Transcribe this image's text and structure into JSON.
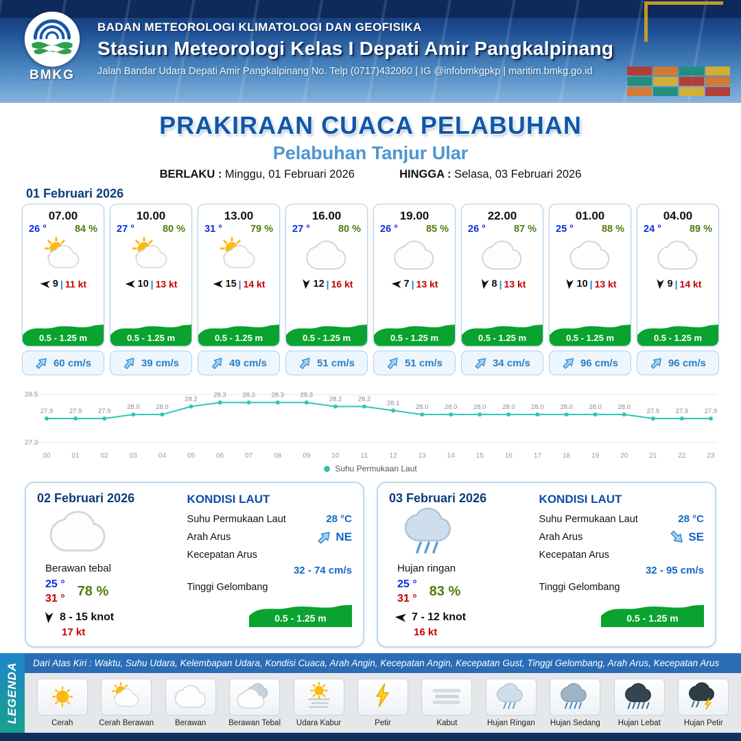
{
  "header": {
    "org": "BADAN METEOROLOGI KLIMATOLOGI DAN GEOFISIKA",
    "station": "Stasiun Meteorologi Kelas I Depati Amir Pangkalpinang",
    "address": "Jalan Bandar Udara Depati Amir Pangkalpinang No. Telp (0717)432060 | IG @infobmkgpkp | maritim.bmkg.go.id",
    "logo_label": "BMKG"
  },
  "title": {
    "main": "PRAKIRAAN CUACA PELABUHAN",
    "sub": "Pelabuhan Tanjur Ular",
    "berlaku_label": "BERLAKU :",
    "berlaku_value": "Minggu, 01 Februari 2026",
    "hingga_label": "HINGGA :",
    "hingga_value": "Selasa, 03 Februari 2026"
  },
  "forecast_date": "01 Februari 2026",
  "hourly_cards": [
    {
      "time": "07.00",
      "temp": "26 °",
      "humidity": "84 %",
      "icon": "cerah-berawan",
      "wind_deg": 185,
      "wind": "9",
      "gust": "11 kt",
      "wave": "0.5 - 1.25 m",
      "cur_deg": -45,
      "current": "60 cm/s"
    },
    {
      "time": "10.00",
      "temp": "27 °",
      "humidity": "80 %",
      "icon": "cerah-berawan",
      "wind_deg": 180,
      "wind": "10",
      "gust": "13 kt",
      "wave": "0.5 - 1.25 m",
      "cur_deg": -50,
      "current": "39 cm/s"
    },
    {
      "time": "13.00",
      "temp": "31 °",
      "humidity": "79 %",
      "icon": "cerah-berawan",
      "wind_deg": 180,
      "wind": "15",
      "gust": "14 kt",
      "wave": "0.5 - 1.25 m",
      "cur_deg": -50,
      "current": "49 cm/s"
    },
    {
      "time": "16.00",
      "temp": "27 °",
      "humidity": "80 %",
      "icon": "berawan",
      "wind_deg": 95,
      "wind": "12",
      "gust": "16 kt",
      "wave": "0.5 - 1.25 m",
      "cur_deg": -50,
      "current": "51 cm/s"
    },
    {
      "time": "19.00",
      "temp": "26 °",
      "humidity": "85 %",
      "icon": "berawan",
      "wind_deg": 185,
      "wind": "7",
      "gust": "13 kt",
      "wave": "0.5 - 1.25 m",
      "cur_deg": -50,
      "current": "51 cm/s"
    },
    {
      "time": "22.00",
      "temp": "26 °",
      "humidity": "87 %",
      "icon": "berawan",
      "wind_deg": 100,
      "wind": "8",
      "gust": "13 kt",
      "wave": "0.5 - 1.25 m",
      "cur_deg": -45,
      "current": "34 cm/s"
    },
    {
      "time": "01.00",
      "temp": "25 °",
      "humidity": "88 %",
      "icon": "berawan",
      "wind_deg": 95,
      "wind": "10",
      "gust": "13 kt",
      "wave": "0.5 - 1.25 m",
      "cur_deg": -45,
      "current": "96 cm/s"
    },
    {
      "time": "04.00",
      "temp": "24 °",
      "humidity": "89 %",
      "icon": "berawan",
      "wind_deg": 95,
      "wind": "9",
      "gust": "14 kt",
      "wave": "0.5 - 1.25 m",
      "cur_deg": -45,
      "current": "96 cm/s"
    }
  ],
  "chart_data": {
    "type": "line",
    "series_name": "Suhu Permukaan Laut",
    "x": [
      "00",
      "01",
      "02",
      "03",
      "04",
      "05",
      "06",
      "07",
      "08",
      "09",
      "10",
      "11",
      "12",
      "13",
      "14",
      "15",
      "16",
      "17",
      "18",
      "19",
      "20",
      "21",
      "22",
      "23"
    ],
    "values": [
      27.9,
      27.9,
      27.9,
      28.0,
      28.0,
      28.2,
      28.3,
      28.3,
      28.3,
      28.3,
      28.2,
      28.2,
      28.1,
      28.0,
      28.0,
      28.0,
      28.0,
      28.0,
      28.0,
      28.0,
      28.0,
      27.9,
      27.9,
      27.9
    ],
    "ylim": [
      27.3,
      28.5
    ],
    "line_color": "#2fc5b0",
    "legend_position": "bottom",
    "grid": "minimal"
  },
  "day_cards": [
    {
      "date": "02 Februari 2026",
      "icon": "berawan",
      "condition": "Berawan tebal",
      "temp_low": "25 °",
      "temp_high": "31 °",
      "humidity": "78 %",
      "wind_deg": 95,
      "wind_range": "8 - 15 knot",
      "gust": "17 kt",
      "sea": {
        "title": "KONDISI LAUT",
        "sst_label": "Suhu Permukaan Laut",
        "sst": "28 °C",
        "dir_label": "Arah Arus",
        "dir": "NE",
        "dir_deg": -45,
        "speed_label": "Kecepatan Arus",
        "speed": "32  - 74 cm/s",
        "wave_label": "Tinggi Gelombang",
        "wave": "0.5 - 1.25 m"
      }
    },
    {
      "date": "03 Februari 2026",
      "icon": "hujan-ringan",
      "condition": "Hujan ringan",
      "temp_low": "25 °",
      "temp_high": "31 °",
      "humidity": "83 %",
      "wind_deg": 185,
      "wind_range": "7 - 12 knot",
      "gust": "16 kt",
      "sea": {
        "title": "KONDISI LAUT",
        "sst_label": "Suhu Permukaan Laut",
        "sst": "28 °C",
        "dir_label": "Arah Arus",
        "dir": "SE",
        "dir_deg": 45,
        "speed_label": "Kecepatan Arus",
        "speed": "32  - 95 cm/s",
        "wave_label": "Tinggi Gelombang",
        "wave": "0.5 - 1.25 m"
      }
    }
  ],
  "legend": {
    "sidebar": "LEGENDA",
    "description": "Dari Atas Kiri : Waktu, Suhu Udara, Kelembapan Udara, Kondisi Cuaca, Arah Angin, Kecepatan Angin, Kecepatan Gust, Tinggi Gelombang, Arah Arus, Kecepatan Arus",
    "items": [
      {
        "label": "Cerah",
        "icon": "cerah"
      },
      {
        "label": "Cerah Berawan",
        "icon": "cerah-berawan"
      },
      {
        "label": "Berawan",
        "icon": "berawan"
      },
      {
        "label": "Berawan Tebal",
        "icon": "berawan-tebal"
      },
      {
        "label": "Udara Kabur",
        "icon": "udara-kabur"
      },
      {
        "label": "Petir",
        "icon": "petir"
      },
      {
        "label": "Kabut",
        "icon": "kabut"
      },
      {
        "label": "Hujan Ringan",
        "icon": "hujan-ringan"
      },
      {
        "label": "Hujan Sedang",
        "icon": "hujan-sedang"
      },
      {
        "label": "Hujan Lebat",
        "icon": "hujan-lebat"
      },
      {
        "label": "Hujan Petir",
        "icon": "hujan-petir"
      }
    ]
  }
}
